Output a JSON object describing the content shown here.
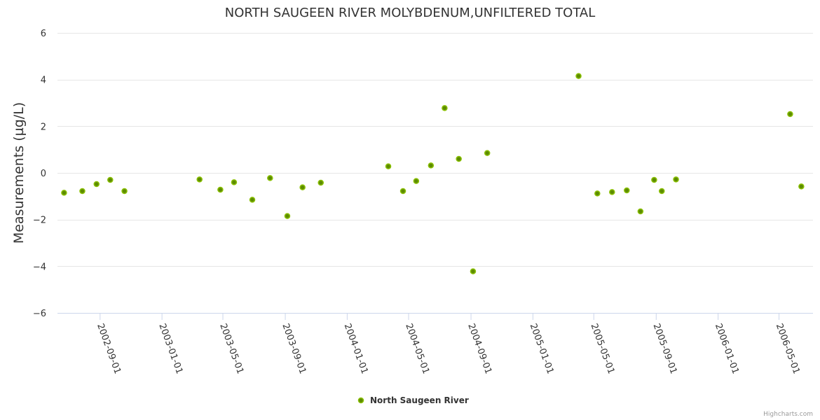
{
  "chart_data": {
    "type": "scatter",
    "title": "NORTH SAUGEEN RIVER MOLYBDENUM,UNFILTERED TOTAL",
    "xlabel": "",
    "ylabel": "Measurements (µg/L)",
    "ylim": [
      -6,
      6
    ],
    "yticks": [
      "6",
      "4",
      "2",
      "0",
      "−2",
      "−4",
      "−6"
    ],
    "ytick_values": [
      6,
      4,
      2,
      0,
      -2,
      -4,
      -6
    ],
    "xlim": [
      "2002-06-09",
      "2006-07-07"
    ],
    "xtick_labels": [
      "2002-09-01",
      "2003-01-01",
      "2003-05-01",
      "2003-09-01",
      "2004-01-01",
      "2004-05-01",
      "2004-09-01",
      "2005-01-01",
      "2005-05-01",
      "2005-09-01",
      "2006-01-01",
      "2006-05-01"
    ],
    "legend": {
      "position": "bottom-center",
      "entries": [
        "North Saugeen River"
      ]
    },
    "grid": true,
    "series": [
      {
        "name": "North Saugeen River",
        "color": "#5d8c00",
        "stroke": "#8ac000",
        "points": [
          {
            "x": "2002-06-22",
            "y": -0.85
          },
          {
            "x": "2002-07-28",
            "y": -0.78
          },
          {
            "x": "2002-08-25",
            "y": -0.48
          },
          {
            "x": "2002-09-21",
            "y": -0.3
          },
          {
            "x": "2002-10-19",
            "y": -0.78
          },
          {
            "x": "2003-03-16",
            "y": -0.28
          },
          {
            "x": "2003-04-26",
            "y": -0.72
          },
          {
            "x": "2003-05-23",
            "y": -0.4
          },
          {
            "x": "2003-06-28",
            "y": -1.15
          },
          {
            "x": "2003-08-02",
            "y": -0.22
          },
          {
            "x": "2003-09-05",
            "y": -1.85
          },
          {
            "x": "2003-10-05",
            "y": -0.62
          },
          {
            "x": "2003-11-10",
            "y": -0.42
          },
          {
            "x": "2004-03-22",
            "y": 0.28
          },
          {
            "x": "2004-04-20",
            "y": -0.78
          },
          {
            "x": "2004-05-16",
            "y": -0.35
          },
          {
            "x": "2004-06-14",
            "y": 0.32
          },
          {
            "x": "2004-07-11",
            "y": 2.78
          },
          {
            "x": "2004-08-08",
            "y": 0.6
          },
          {
            "x": "2004-09-05",
            "y": -4.22
          },
          {
            "x": "2004-10-03",
            "y": 0.85
          },
          {
            "x": "2005-04-01",
            "y": 4.15
          },
          {
            "x": "2005-05-08",
            "y": -0.88
          },
          {
            "x": "2005-06-06",
            "y": -0.82
          },
          {
            "x": "2005-07-05",
            "y": -0.75
          },
          {
            "x": "2005-08-01",
            "y": -1.65
          },
          {
            "x": "2005-08-28",
            "y": -0.3
          },
          {
            "x": "2005-09-12",
            "y": -0.78
          },
          {
            "x": "2005-10-10",
            "y": -0.28
          },
          {
            "x": "2006-05-23",
            "y": 2.52
          },
          {
            "x": "2006-06-14",
            "y": -0.58
          }
        ]
      }
    ]
  },
  "credits": "Highcharts.com"
}
